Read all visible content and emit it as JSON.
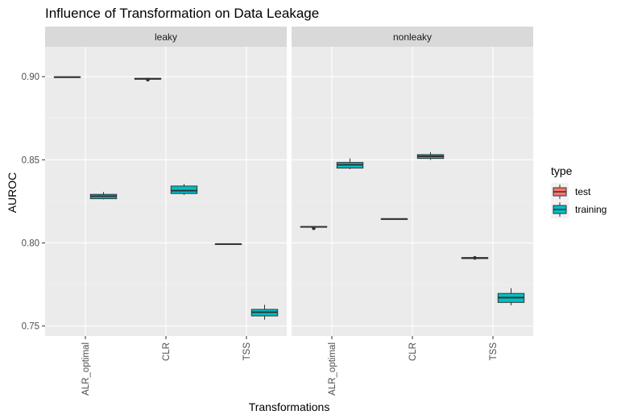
{
  "chart_data": {
    "type": "boxplot",
    "title": "Influence of Transformation on Data Leakage",
    "xlabel": "Transformations",
    "ylabel": "AUROC",
    "ylim": [
      0.744,
      0.918
    ],
    "yticks": [
      0.75,
      0.8,
      0.85,
      0.9
    ],
    "ytick_labels": [
      "0.75",
      "0.80",
      "0.85",
      "0.90"
    ],
    "categories": [
      "ALR_optimal",
      "CLR",
      "TSS"
    ],
    "facets": [
      "leaky",
      "nonleaky"
    ],
    "grid": true,
    "legend_position": "right",
    "legend": {
      "title": "type",
      "entries": [
        {
          "label": "test",
          "color": "#F8766D"
        },
        {
          "label": "training",
          "color": "#00BFC4"
        }
      ]
    },
    "boxes": [
      {
        "facet": "leaky",
        "category": "ALR_optimal",
        "type": "test",
        "lo": 0.8995,
        "q1": 0.8995,
        "median": 0.8997,
        "q3": 0.8999,
        "hi": 0.8999,
        "outliers": []
      },
      {
        "facet": "leaky",
        "category": "ALR_optimal",
        "type": "training",
        "lo": 0.8262,
        "q1": 0.8266,
        "median": 0.8281,
        "q3": 0.8292,
        "hi": 0.8306,
        "outliers": []
      },
      {
        "facet": "leaky",
        "category": "CLR",
        "type": "test",
        "lo": 0.8985,
        "q1": 0.8985,
        "median": 0.8987,
        "q3": 0.899,
        "hi": 0.899,
        "outliers": [
          0.8982
        ]
      },
      {
        "facet": "leaky",
        "category": "CLR",
        "type": "training",
        "lo": 0.8289,
        "q1": 0.8297,
        "median": 0.8314,
        "q3": 0.8342,
        "hi": 0.8355,
        "outliers": []
      },
      {
        "facet": "leaky",
        "category": "TSS",
        "type": "test",
        "lo": 0.7992,
        "q1": 0.7992,
        "median": 0.7993,
        "q3": 0.7994,
        "hi": 0.7994,
        "outliers": []
      },
      {
        "facet": "leaky",
        "category": "TSS",
        "type": "training",
        "lo": 0.7538,
        "q1": 0.7561,
        "median": 0.7583,
        "q3": 0.76,
        "hi": 0.7628,
        "outliers": []
      },
      {
        "facet": "nonleaky",
        "category": "ALR_optimal",
        "type": "test",
        "lo": 0.8094,
        "q1": 0.8094,
        "median": 0.8097,
        "q3": 0.8099,
        "hi": 0.8099,
        "outliers": [
          0.8088
        ]
      },
      {
        "facet": "nonleaky",
        "category": "ALR_optimal",
        "type": "training",
        "lo": 0.8443,
        "q1": 0.845,
        "median": 0.847,
        "q3": 0.8484,
        "hi": 0.8508,
        "outliers": []
      },
      {
        "facet": "nonleaky",
        "category": "CLR",
        "type": "test",
        "lo": 0.8142,
        "q1": 0.8142,
        "median": 0.8144,
        "q3": 0.8145,
        "hi": 0.8145,
        "outliers": []
      },
      {
        "facet": "nonleaky",
        "category": "CLR",
        "type": "training",
        "lo": 0.8499,
        "q1": 0.8508,
        "median": 0.8521,
        "q3": 0.8531,
        "hi": 0.8546,
        "outliers": []
      },
      {
        "facet": "nonleaky",
        "category": "TSS",
        "type": "test",
        "lo": 0.7906,
        "q1": 0.7906,
        "median": 0.7909,
        "q3": 0.7912,
        "hi": 0.7912,
        "outliers": [
          0.791
        ]
      },
      {
        "facet": "nonleaky",
        "category": "TSS",
        "type": "training",
        "lo": 0.7625,
        "q1": 0.7642,
        "median": 0.7671,
        "q3": 0.7696,
        "hi": 0.7728,
        "outliers": []
      }
    ]
  }
}
